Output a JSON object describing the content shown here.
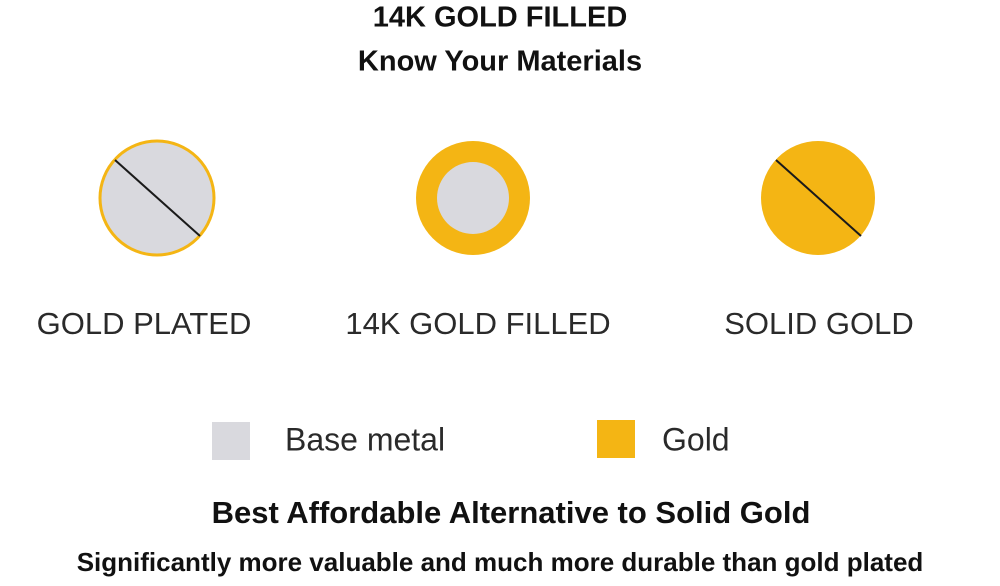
{
  "header": {
    "title": "14K GOLD FILLED",
    "subtitle": "Know Your Materials"
  },
  "items": [
    {
      "label": "GOLD PLATED"
    },
    {
      "label": "14K GOLD FILLED"
    },
    {
      "label": "SOLID GOLD"
    }
  ],
  "legend": [
    {
      "label": "Base metal"
    },
    {
      "label": "Gold"
    }
  ],
  "footer": {
    "headline": "Best Affordable Alternative to Solid Gold",
    "text": "Significantly more valuable and much more durable than gold plated"
  }
}
